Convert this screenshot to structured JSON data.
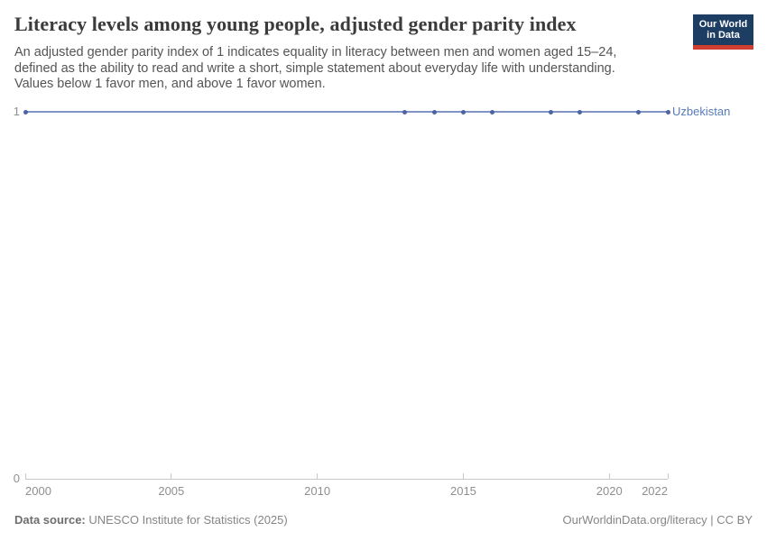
{
  "header": {
    "title": "Literacy levels among young people, adjusted gender parity index",
    "subtitle_lines": [
      "An adjusted gender parity index of 1 indicates equality in literacy between men and women aged 15–24,",
      "defined as the ability to read and write a short, simple statement about everyday life with understanding.",
      "Values below 1 favor men, and above 1 favor women."
    ]
  },
  "logo": {
    "line1": "Our World",
    "line2": "in Data"
  },
  "colors": {
    "accent_navy": "#1d3d63",
    "accent_red": "#d13f31",
    "axis": "#c8c8c8",
    "tick_text": "#8f8f8f",
    "entity_label": "#577bb8"
  },
  "chart_data": {
    "type": "line",
    "title": "Literacy levels among young people, adjusted gender parity index",
    "xlabel": "",
    "ylabel": "",
    "xlim": [
      2000,
      2022
    ],
    "ylim": [
      0,
      1
    ],
    "x_ticks": [
      2000,
      2005,
      2010,
      2015,
      2020,
      2022
    ],
    "y_ticks": [
      1,
      0
    ],
    "grid": false,
    "legend_position": "right-of-line-end",
    "series": [
      {
        "name": "Uzbekistan",
        "line_color": "#8094c5",
        "point_color": "#4d64a4",
        "label_color": "#577bb8",
        "x": [
          2000,
          2013,
          2014,
          2015,
          2016,
          2018,
          2019,
          2021,
          2022
        ],
        "values": [
          1,
          1,
          1,
          1,
          1,
          1,
          1,
          1,
          1
        ]
      }
    ]
  },
  "footer": {
    "source_label": "Data source:",
    "source_value": " UNESCO Institute for Statistics (2025)",
    "right_text": "OurWorldinData.org/literacy | CC BY"
  }
}
